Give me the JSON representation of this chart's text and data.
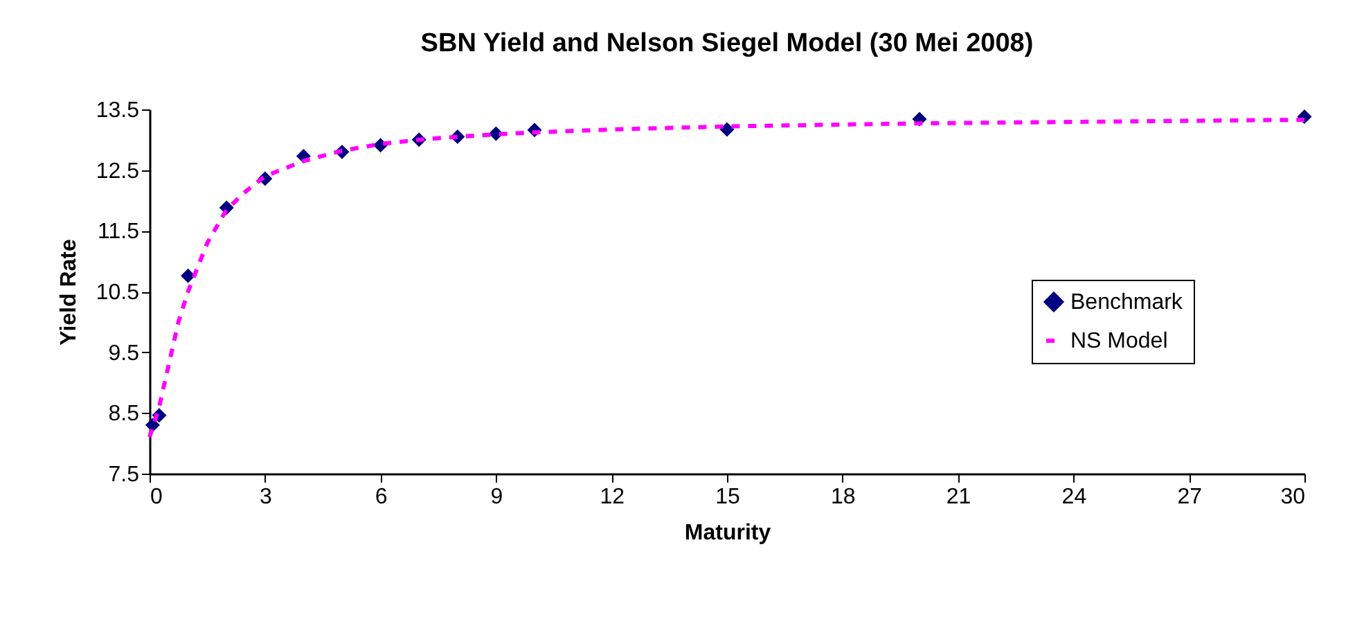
{
  "chart_data": {
    "type": "scatter",
    "title": "SBN Yield and Nelson Siegel Model (30 Mei 2008)",
    "xlabel": "Maturity",
    "ylabel": "Yield Rate",
    "xlim": [
      0,
      30
    ],
    "xticks": [
      0,
      3,
      6,
      9,
      12,
      15,
      18,
      21,
      24,
      27,
      30
    ],
    "ylim": [
      7.5,
      13.5
    ],
    "yticks": [
      7.5,
      8.5,
      9.5,
      10.5,
      11.5,
      12.5,
      13.5
    ],
    "grid": false,
    "legend": "bottom right",
    "series": [
      {
        "name": "Benchmark",
        "type": "scatter",
        "marker": "diamond",
        "color": "#000080",
        "x": [
          0.08,
          0.25,
          1,
          2,
          3,
          4,
          5,
          6,
          7,
          8,
          9,
          10,
          15,
          20,
          30
        ],
        "values": [
          8.3,
          8.46,
          10.76,
          11.88,
          12.36,
          12.73,
          12.8,
          12.91,
          13.0,
          13.05,
          13.1,
          13.16,
          13.17,
          13.34,
          13.38
        ]
      },
      {
        "name": "NS Model",
        "type": "line",
        "line_style": "dashed",
        "color": "#ff00ff",
        "x": [
          0,
          0.25,
          0.5,
          0.75,
          1,
          1.5,
          2,
          2.5,
          3,
          4,
          5,
          6,
          7,
          8,
          9,
          10,
          12,
          15,
          20,
          25,
          30
        ],
        "values": [
          8.1,
          8.6,
          9.3,
          10.0,
          10.5,
          11.3,
          11.85,
          12.15,
          12.4,
          12.65,
          12.82,
          12.93,
          13.0,
          13.05,
          13.09,
          13.12,
          13.17,
          13.22,
          13.27,
          13.3,
          13.33
        ]
      }
    ]
  }
}
